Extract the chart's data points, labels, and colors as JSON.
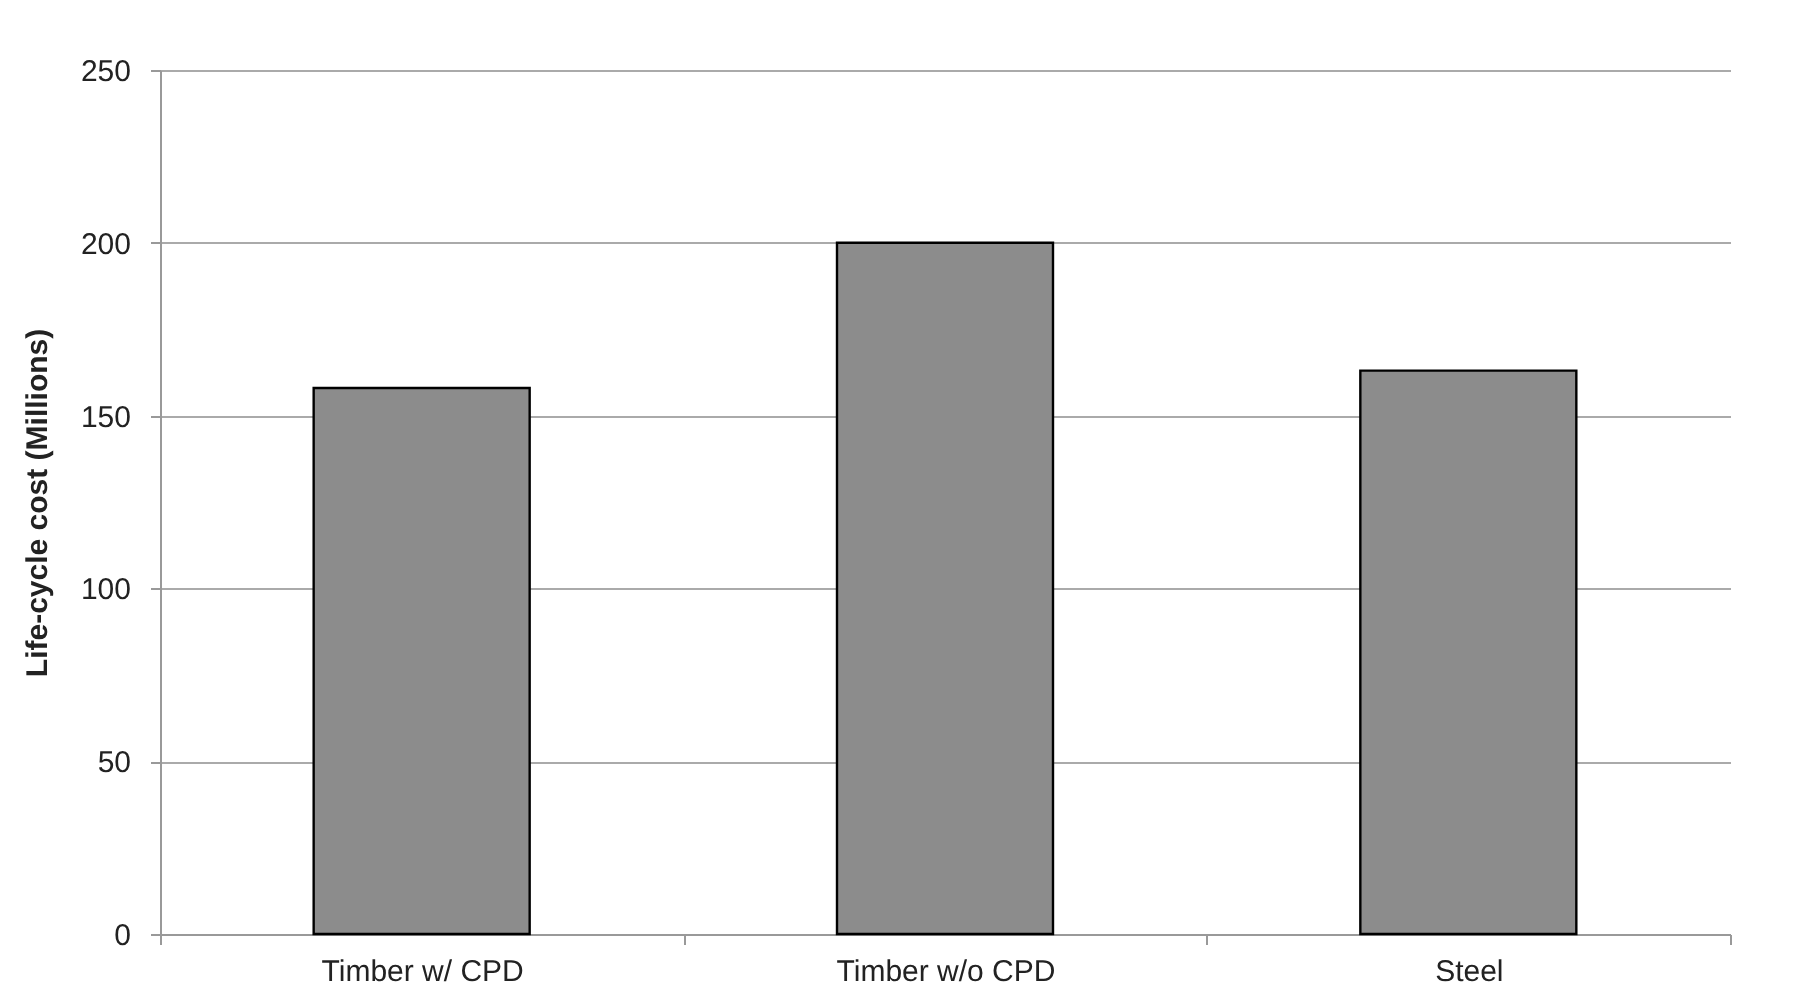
{
  "chart_data": {
    "type": "bar",
    "ylabel": "Life-cycle cost (Millions)",
    "categories": [
      "Timber w/ CPD",
      "Timber w/o CPD",
      "Steel"
    ],
    "values": [
      158,
      200,
      163
    ],
    "color": "#8c8c8c",
    "ylim": [
      0,
      250
    ],
    "yticks": [
      0,
      50,
      100,
      150,
      200,
      250
    ],
    "grid": "y"
  }
}
